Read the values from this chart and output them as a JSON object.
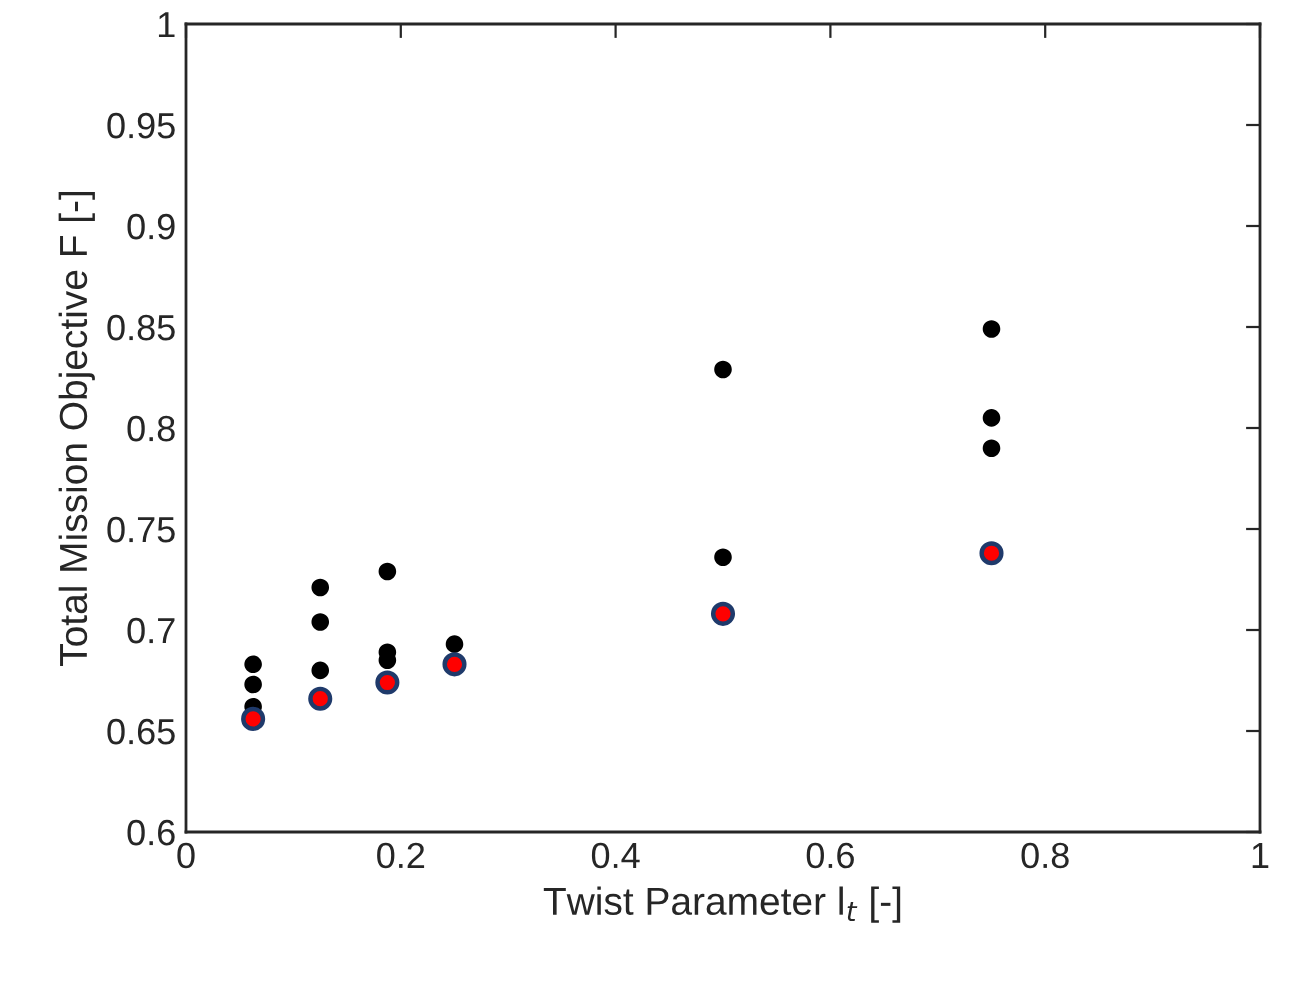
{
  "chart_data": {
    "type": "scatter",
    "xlabel": "Twist Parameter l$_{t}$ [-]",
    "ylabel": "Total Mission Objective F [-]",
    "xlim": [
      0,
      1
    ],
    "xticks": [
      0,
      0.2,
      0.4,
      0.6,
      0.8,
      1
    ],
    "ylim": [
      0.6,
      1
    ],
    "yticks": [
      0.6,
      0.65,
      0.7,
      0.75,
      0.8,
      0.85,
      0.9,
      0.95,
      1
    ],
    "marker": "circle",
    "grid": false,
    "legend": false,
    "series": [
      {
        "color": "#000000",
        "x": [
          0.0625,
          0.0625,
          0.0625,
          0.125,
          0.125,
          0.125,
          0.1875,
          0.1875,
          0.1875,
          0.25,
          0.5,
          0.5,
          0.75,
          0.75,
          0.75
        ],
        "values": [
          0.683,
          0.673,
          0.662,
          0.721,
          0.704,
          0.68,
          0.729,
          0.689,
          0.685,
          0.693,
          0.829,
          0.736,
          0.849,
          0.805,
          0.79
        ]
      },
      {
        "color": "#ff0000",
        "x": [
          0.0625,
          0.125,
          0.1875,
          0.25,
          0.5,
          0.75
        ],
        "values": [
          0.656,
          0.666,
          0.674,
          0.683,
          0.708,
          0.738
        ]
      }
    ]
  }
}
